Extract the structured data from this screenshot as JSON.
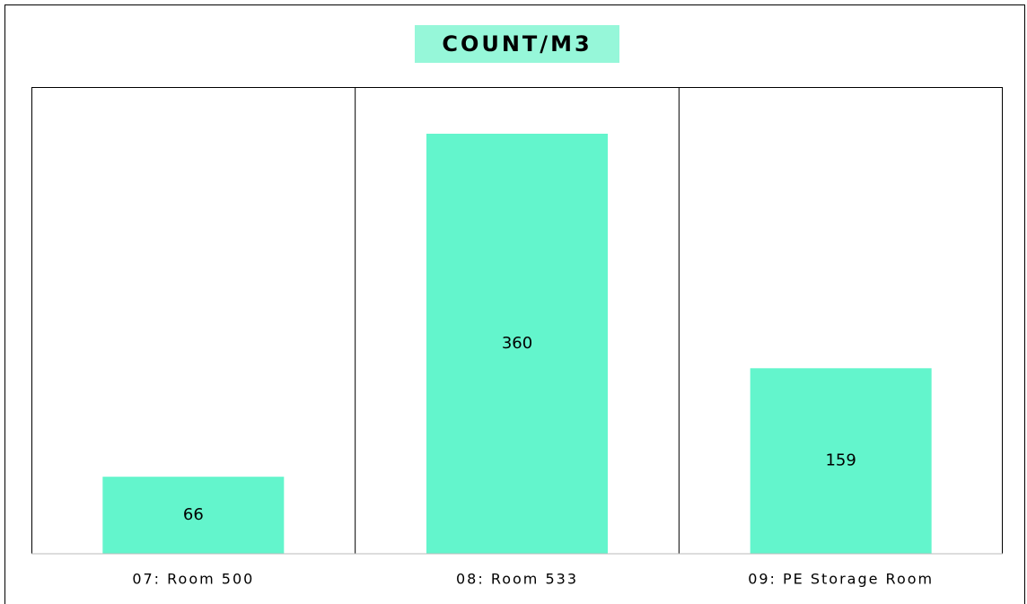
{
  "chart_data": {
    "type": "bar",
    "title": "COUNT/M3",
    "categories": [
      "07: Room 500",
      "08: Room 533",
      "09: PE Storage Room"
    ],
    "values": [
      66,
      360,
      159
    ],
    "color": "#63f5cc",
    "ylim": [
      0,
      400
    ]
  }
}
